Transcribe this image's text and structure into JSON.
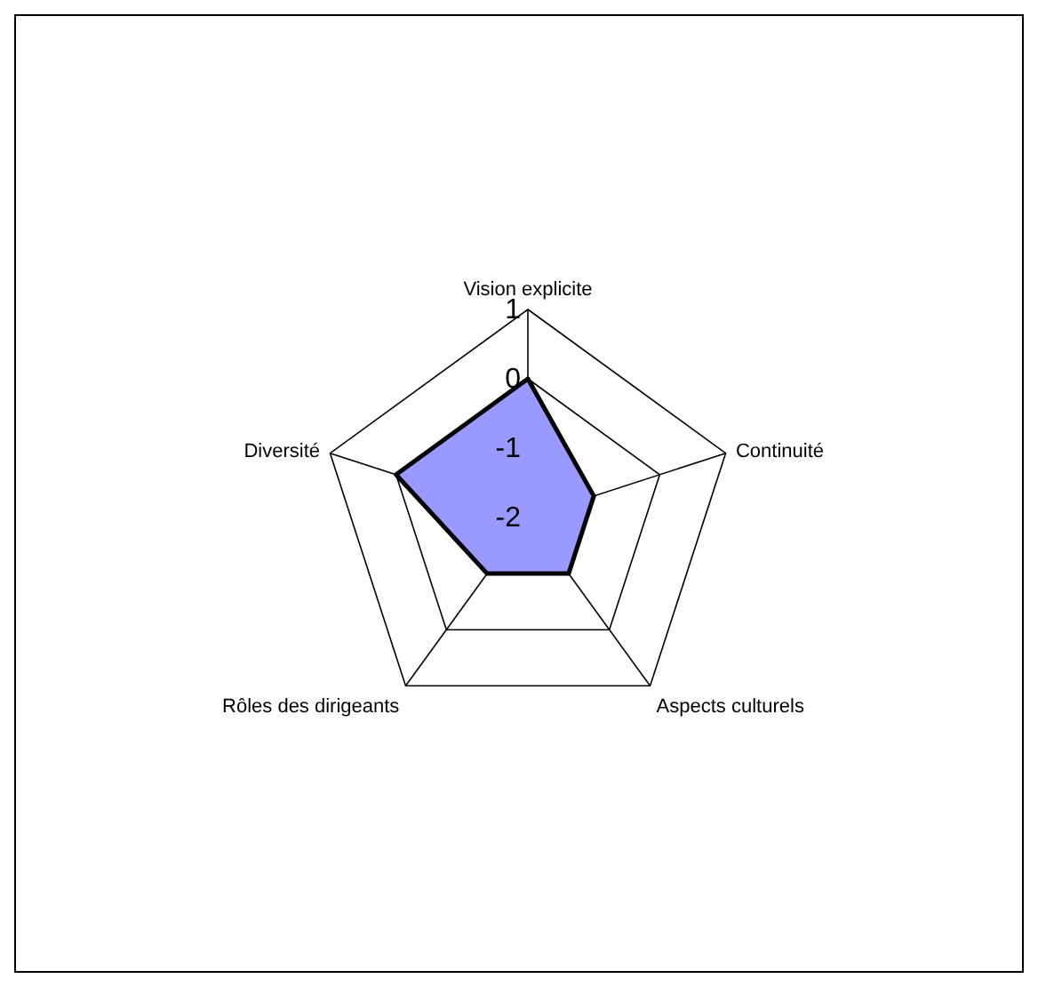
{
  "chart_data": {
    "type": "radar",
    "categories": [
      "Vision explicite",
      "Continuité",
      "Aspects culturels",
      "Rôles des dirigeants",
      "Diversité"
    ],
    "series": [
      {
        "color": "#9999ff",
        "values": [
          0,
          -1,
          -1,
          -1,
          0
        ]
      }
    ],
    "ylim": [
      -2,
      1
    ],
    "yticks": [
      -2,
      -1,
      0,
      1
    ],
    "grid": true
  }
}
